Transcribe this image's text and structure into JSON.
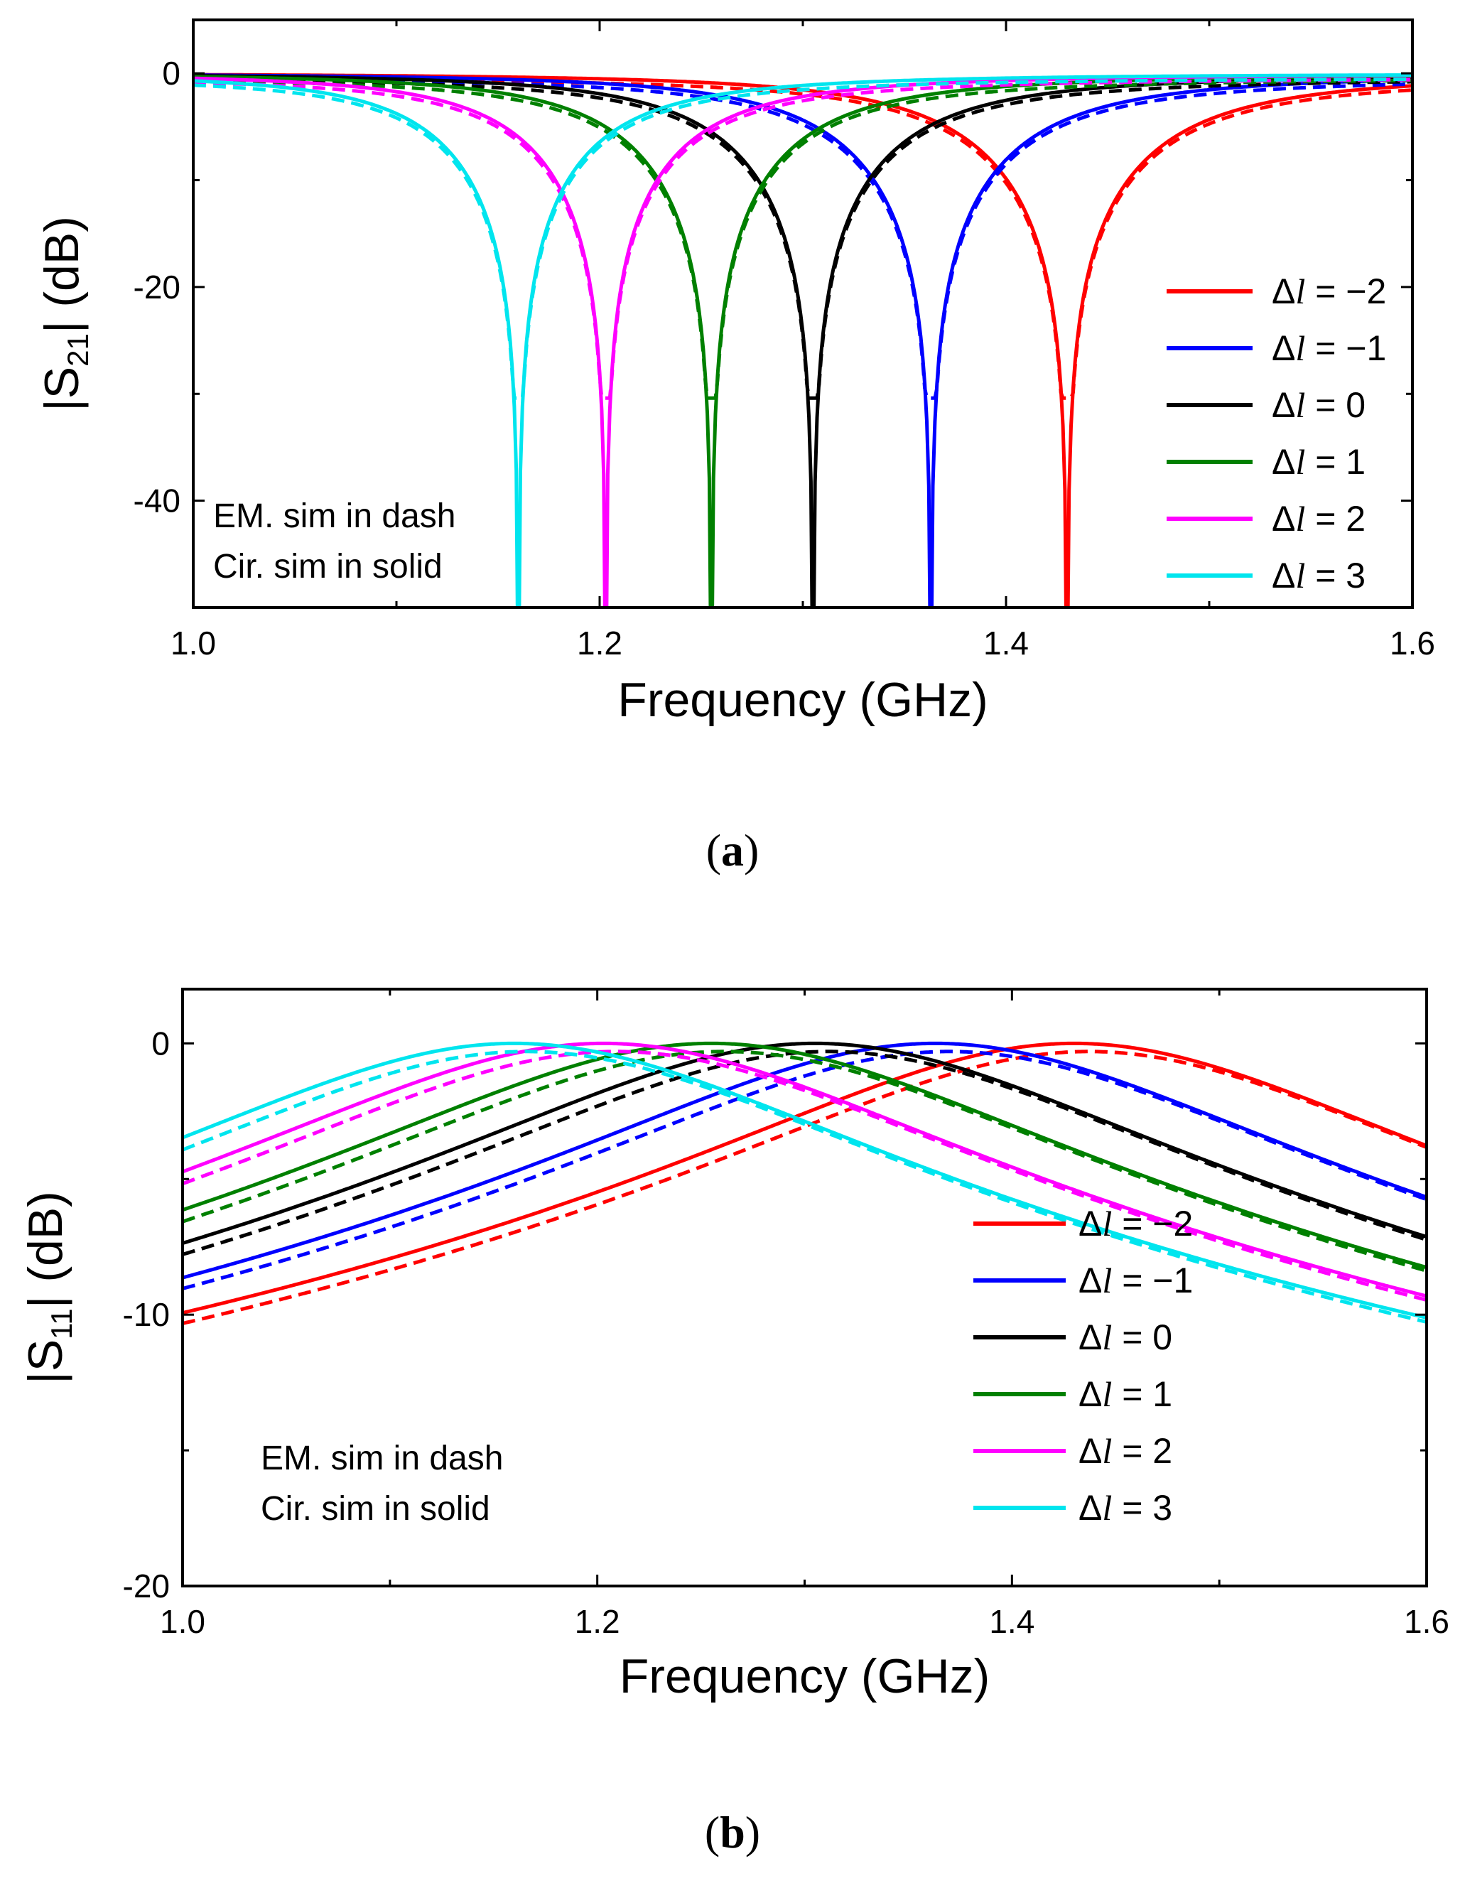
{
  "chart_data": [
    {
      "type": "line",
      "panel_label": "a",
      "quantity": "S21",
      "ylabel_parts": [
        "|S",
        "21",
        "| (dB)"
      ],
      "xlabel": "Frequency (GHz)",
      "xlim": [
        1.0,
        1.6
      ],
      "ylim": [
        -50,
        5
      ],
      "xticks": [
        1.0,
        1.2,
        1.4,
        1.6
      ],
      "xtick_labels": [
        "1.0",
        "1.2",
        "1.4",
        "1.6"
      ],
      "yticks": [
        0,
        -20,
        -40
      ],
      "ytick_labels": [
        "0",
        "-20",
        "-40"
      ],
      "legend_position": "right",
      "annotations": [
        "EM. sim in dash",
        "Cir. sim in solid"
      ],
      "series": [
        {
          "name": "Δl = −2",
          "delta": "−2",
          "color": "#ff0000",
          "notch_freq_circuit": 1.43,
          "notch_freq_em": 1.43,
          "notch_depth_em": -30
        },
        {
          "name": "Δl = −1",
          "delta": "−1",
          "color": "#0000ff",
          "notch_freq_circuit": 1.363,
          "notch_freq_em": 1.363,
          "notch_depth_em": -30
        },
        {
          "name": "Δl = 0",
          "delta": "0",
          "color": "#000000",
          "notch_freq_circuit": 1.305,
          "notch_freq_em": 1.305,
          "notch_depth_em": -30
        },
        {
          "name": "Δl = 1",
          "delta": "1",
          "color": "#008000",
          "notch_freq_circuit": 1.255,
          "notch_freq_em": 1.255,
          "notch_depth_em": -30
        },
        {
          "name": "Δl = 2",
          "delta": "2",
          "color": "#ff00ff",
          "notch_freq_circuit": 1.203,
          "notch_freq_em": 1.203,
          "notch_depth_em": -30
        },
        {
          "name": "Δl = 3",
          "delta": "3",
          "color": "#00e5ee",
          "notch_freq_circuit": 1.16,
          "notch_freq_em": 1.16,
          "notch_depth_em": -30
        }
      ]
    },
    {
      "type": "line",
      "panel_label": "b",
      "quantity": "S11",
      "ylabel_parts": [
        "|S",
        "11",
        "| (dB)"
      ],
      "xlabel": "Frequency (GHz)",
      "xlim": [
        1.0,
        1.6
      ],
      "ylim": [
        -20,
        2
      ],
      "xticks": [
        1.0,
        1.2,
        1.4,
        1.6
      ],
      "xtick_labels": [
        "1.0",
        "1.2",
        "1.4",
        "1.6"
      ],
      "yticks": [
        0,
        -10,
        -20
      ],
      "ytick_labels": [
        "0",
        "-10",
        "-20"
      ],
      "legend_position": "center-right",
      "annotations": [
        "EM. sim in dash",
        "Cir. sim in solid"
      ],
      "series": [
        {
          "name": "Δl = −2",
          "delta": "−2",
          "color": "#ff0000",
          "peak_freq": 1.43
        },
        {
          "name": "Δl = −1",
          "delta": "−1",
          "color": "#0000ff",
          "peak_freq": 1.363
        },
        {
          "name": "Δl = 0",
          "delta": "0",
          "color": "#000000",
          "peak_freq": 1.305
        },
        {
          "name": "Δl = 1",
          "delta": "1",
          "color": "#008000",
          "peak_freq": 1.255
        },
        {
          "name": "Δl = 2",
          "delta": "2",
          "color": "#ff00ff",
          "peak_freq": 1.203
        },
        {
          "name": "Δl = 3",
          "delta": "3",
          "color": "#00e5ee",
          "peak_freq": 1.16
        }
      ]
    }
  ]
}
